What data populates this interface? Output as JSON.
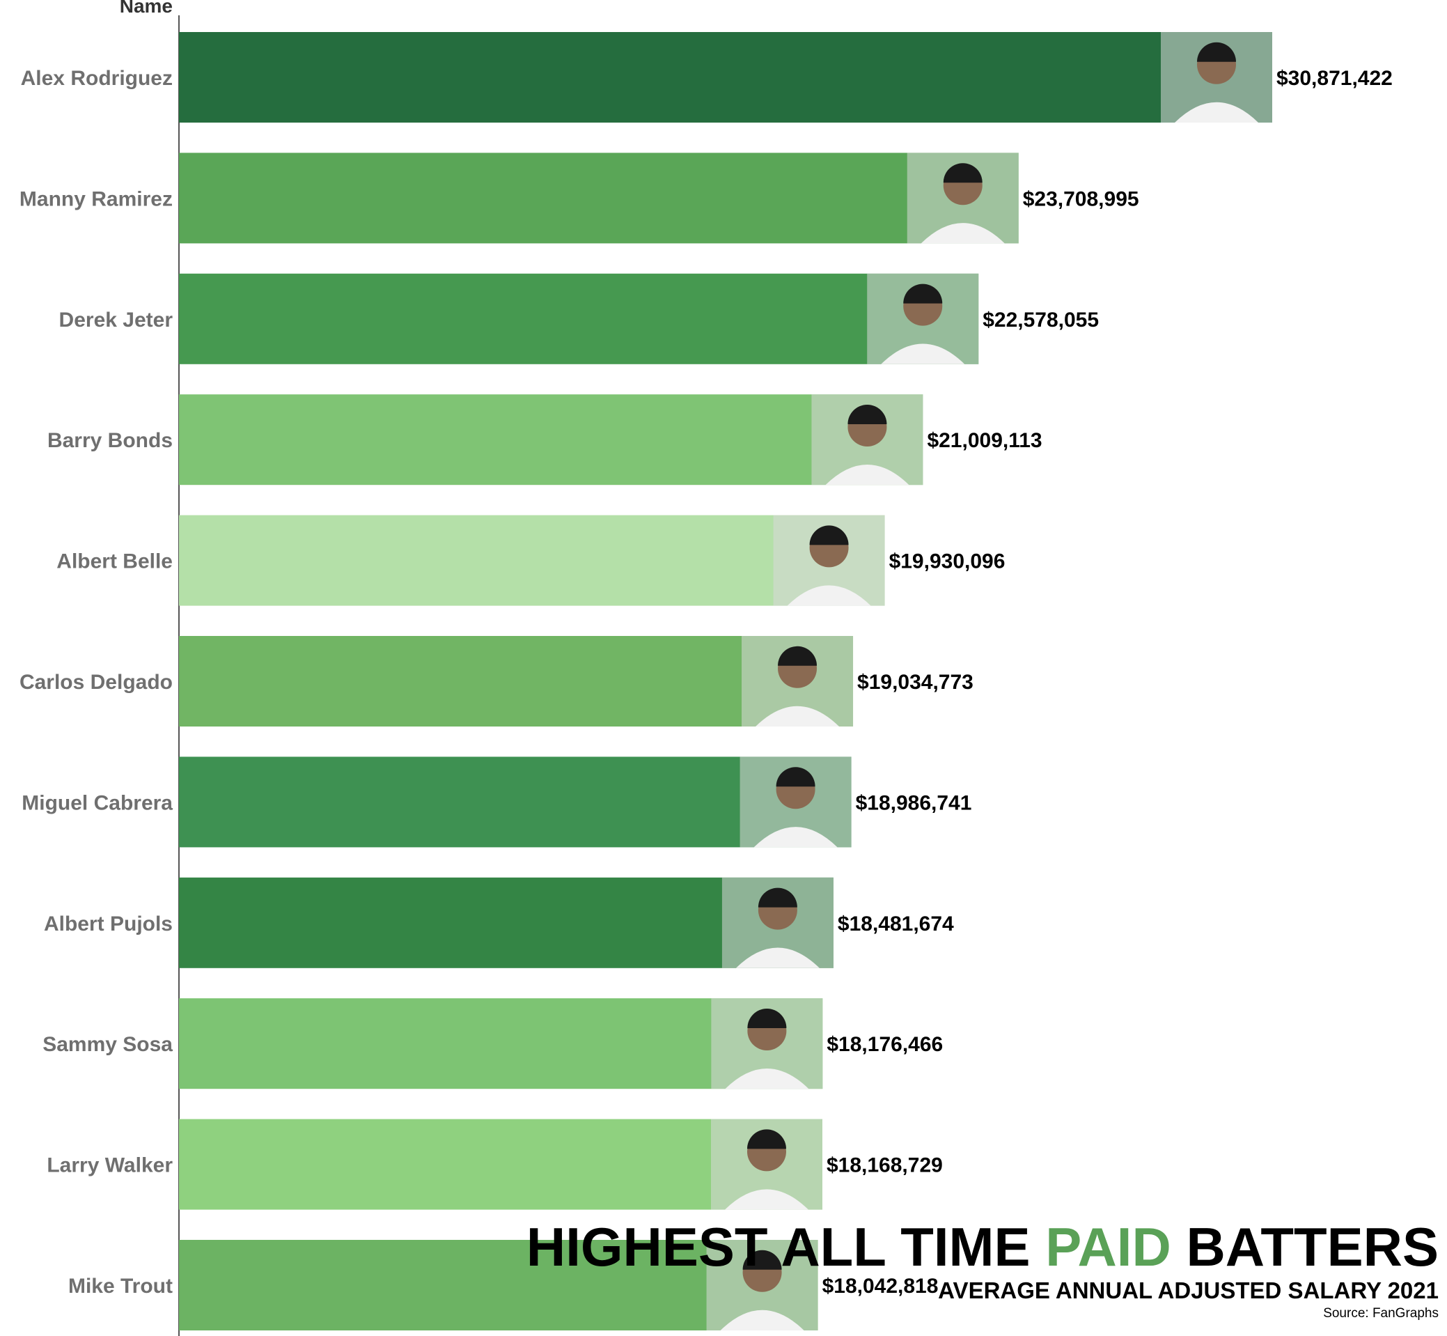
{
  "chart_data": {
    "type": "bar",
    "orientation": "horizontal",
    "title": "HIGHEST ALL TIME PAID BATTERS",
    "subtitle": "AVERAGE ANNUAL ADJUSTED SALARY 2021",
    "source": "Source: FanGraphs",
    "ylabel": "Name",
    "xlabel": "",
    "xlim": [
      0,
      30871422
    ],
    "grid": false,
    "legend": "none",
    "categories": [
      "Alex Rodriguez",
      "Manny Ramirez",
      "Derek Jeter",
      "Barry Bonds",
      "Albert Belle",
      "Carlos Delgado",
      "Miguel Cabrera",
      "Albert Pujols",
      "Sammy Sosa",
      "Larry Walker",
      "Mike Trout"
    ],
    "values": [
      30871422,
      23708995,
      22578055,
      21009113,
      19930096,
      19034773,
      18986741,
      18481674,
      18176466,
      18168729,
      18042818
    ],
    "value_labels": [
      "$30,871,422",
      "$23,708,995",
      "$22,578,055",
      "$21,009,113",
      "$19,930,096",
      "$19,034,773",
      "$18,986,741",
      "$18,481,674",
      "$18,176,466",
      "$18,168,729",
      "$18,042,818"
    ],
    "bar_colors": [
      "#256d3e",
      "#5aa657",
      "#469950",
      "#7fc474",
      "#b4e0a8",
      "#71b564",
      "#3e9152",
      "#348545",
      "#7dc473",
      "#8fd17f",
      "#6cb363"
    ]
  },
  "title_parts": {
    "before": "HIGHEST ALL TIME ",
    "accent": "PAID",
    "after": " BATTERS"
  },
  "colors": {
    "accent": "#5aa157",
    "category_label": "#6f6f6f",
    "value_label": "#000000",
    "axis_line": "#555555",
    "photo_placeholder": "#d9d9d9"
  }
}
